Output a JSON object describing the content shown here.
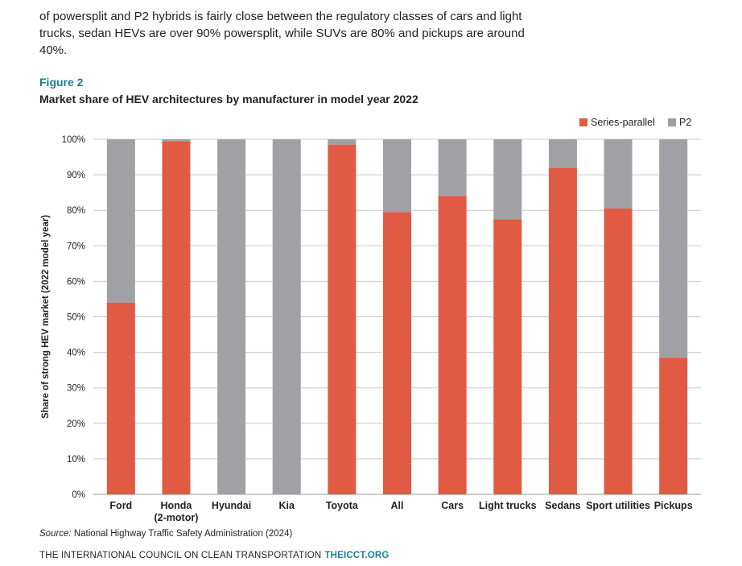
{
  "intro_text": "of powersplit and P2 hybrids is fairly close between the regulatory classes of cars and light trucks, sedan HEVs are over 90% powersplit, while SUVs are 80% and pickups are around 40%.",
  "figure_label": "Figure 2",
  "figure_title": "Market share of HEV architectures by manufacturer in model year 2022",
  "source_label": "Source:",
  "source_text": "National Highway Traffic Safety Administration (2024)",
  "footer_org": "THE INTERNATIONAL COUNCIL ON CLEAN TRANSPORTATION",
  "footer_site": "THEICCT.ORG",
  "colors": {
    "series_parallel": "#e05a44",
    "p2": "#a1a0a4",
    "accent": "#1a7f96"
  },
  "chart_data": {
    "type": "bar",
    "stacked": true,
    "title": "Market share of HEV architectures by manufacturer in model year 2022",
    "xlabel": "",
    "ylabel": "Share of strong HEV market (2022 model year)",
    "ylim": [
      0,
      100
    ],
    "yticks": [
      "0%",
      "10%",
      "20%",
      "30%",
      "40%",
      "50%",
      "60%",
      "70%",
      "80%",
      "90%",
      "100%"
    ],
    "categories": [
      [
        "Ford"
      ],
      [
        "Honda",
        "(2-motor)"
      ],
      [
        "Hyundai"
      ],
      [
        "Kia"
      ],
      [
        "Toyota"
      ],
      [
        "All"
      ],
      [
        "Cars"
      ],
      [
        "Light trucks"
      ],
      [
        "Sedans"
      ],
      [
        "Sport utilities"
      ],
      [
        "Pickups"
      ]
    ],
    "series": [
      {
        "name": "Series-parallel",
        "color": "#e05a44",
        "values": [
          54,
          99.5,
          0,
          0,
          98.5,
          79.5,
          84,
          77.5,
          92,
          80.5,
          38.5
        ]
      },
      {
        "name": "P2",
        "color": "#a1a0a4",
        "values": [
          46,
          0.5,
          100,
          100,
          1.5,
          20.5,
          16,
          22.5,
          8,
          19.5,
          61.5
        ]
      }
    ],
    "legend_position": "top-right",
    "grid": true
  }
}
